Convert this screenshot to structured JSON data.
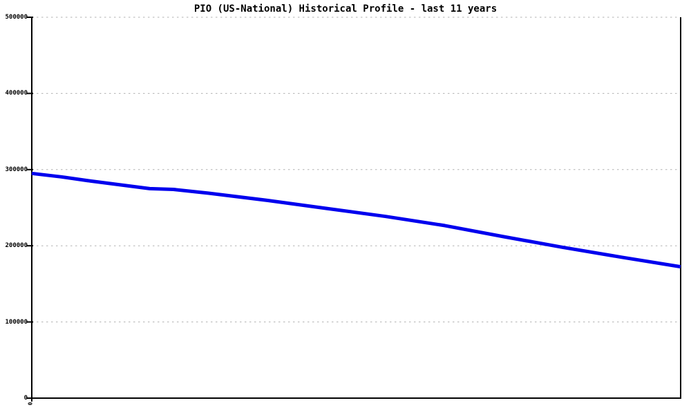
{
  "colors": {
    "line": "#0000ee",
    "grid": "#b0b0b0",
    "axis": "#000000",
    "background": "#ffffff",
    "text": "#000000"
  },
  "chart_data": {
    "type": "line",
    "title": "PIO (US-National) Historical Profile - last 11 years",
    "series_name": "PIO (US-National)",
    "xlabel": "",
    "ylabel": "",
    "x_unit": "years",
    "x": [
      0,
      0.5,
      1,
      1.5,
      2,
      2.4,
      3,
      4,
      5,
      6,
      7,
      8,
      9,
      10,
      11
    ],
    "values": [
      295000,
      290500,
      285000,
      280000,
      275000,
      274000,
      269000,
      259500,
      249000,
      238500,
      226500,
      212000,
      198000,
      185000,
      172500
    ],
    "xlim": [
      0,
      11
    ],
    "ylim": [
      0,
      500000
    ],
    "yticks": [
      0,
      100000,
      200000,
      300000,
      400000,
      500000
    ],
    "ytick_labels": [
      "0",
      "100000",
      "200000",
      "300000",
      "400000",
      "500000"
    ],
    "x_origin_label": "0",
    "grid": "horizontal dotted gridlines at each y tick",
    "legend_position": "none",
    "line_width": 5
  }
}
